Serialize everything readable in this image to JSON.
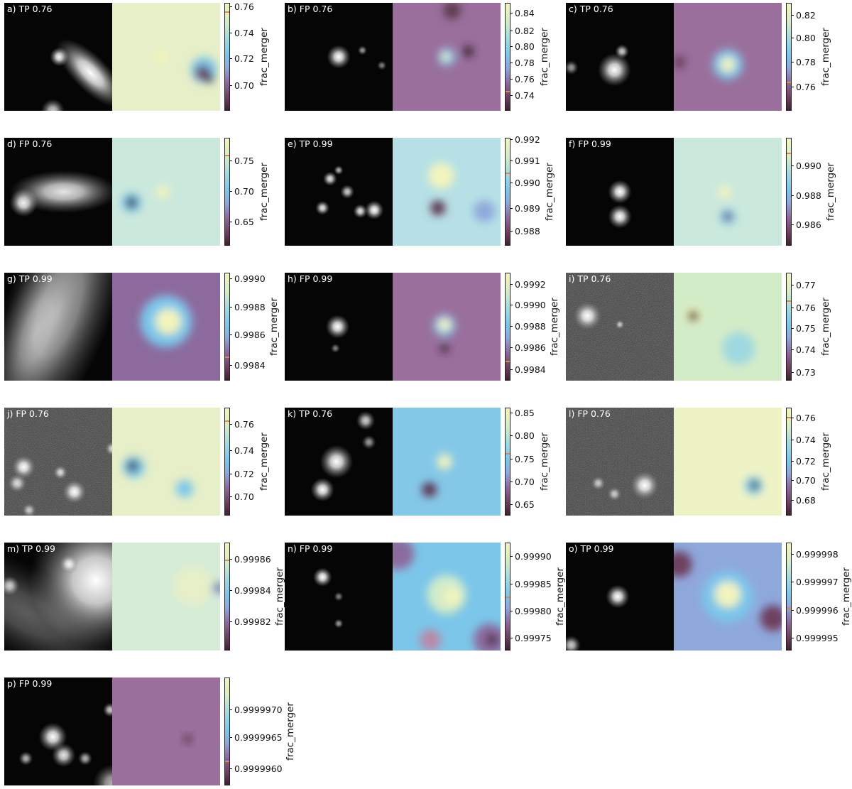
{
  "colorbar_label": "frac_merger",
  "colors": {
    "highlight_tick": "#d98c4a",
    "label_text": "#ffffff",
    "galaxy_bg": "#000000"
  },
  "panels": [
    {
      "id": "a",
      "label": "a) TP 0.76",
      "ticks": [
        "0.76",
        "0.74",
        "0.72",
        "0.70"
      ],
      "tick_pos": [
        0.04,
        0.28,
        0.52,
        0.77
      ],
      "mark": 0.07,
      "bg": "#e6efc8",
      "sources": [
        [
          0.51,
          0.5,
          0.04,
          1
        ],
        [
          0.8,
          0.65,
          0.1,
          1,
          45
        ],
        [
          0.45,
          1.0,
          0.05,
          0.8
        ]
      ],
      "blobs": [
        [
          0.85,
          0.62,
          0.12,
          "#7cc6ea"
        ],
        [
          0.84,
          0.65,
          0.07,
          "#6e3f5e"
        ],
        [
          0.9,
          0.7,
          0.04,
          "#3b2330"
        ],
        [
          0.45,
          0.5,
          0.06,
          "#f3f4bc"
        ]
      ]
    },
    {
      "id": "b",
      "label": "b) FP 0.76",
      "ticks": [
        "0.84",
        "0.82",
        "0.80",
        "0.78",
        "0.76",
        "0.74"
      ],
      "tick_pos": [
        0.1,
        0.26,
        0.41,
        0.56,
        0.71,
        0.86
      ],
      "mark": 0.82,
      "bg": "#9a6f9c",
      "sources": [
        [
          0.5,
          0.5,
          0.05,
          1
        ],
        [
          0.72,
          0.44,
          0.02,
          0.6
        ],
        [
          0.9,
          0.58,
          0.02,
          0.5
        ]
      ],
      "blobs": [
        [
          0.5,
          0.5,
          0.08,
          "#7cc6ea"
        ],
        [
          0.49,
          0.5,
          0.04,
          "#f3f4bc"
        ],
        [
          0.7,
          0.45,
          0.05,
          "#3b2330"
        ],
        [
          0.55,
          0.07,
          0.08,
          "#5c3b4e"
        ]
      ]
    },
    {
      "id": "c",
      "label": "c) TP 0.76",
      "ticks": [
        "0.82",
        "0.80",
        "0.78",
        "0.76"
      ],
      "tick_pos": [
        0.12,
        0.33,
        0.55,
        0.78
      ],
      "mark": 0.73,
      "bg": "#9a6f9c",
      "sources": [
        [
          0.45,
          0.62,
          0.07,
          1
        ],
        [
          0.52,
          0.45,
          0.03,
          0.8
        ],
        [
          0.05,
          0.6,
          0.03,
          0.6
        ]
      ],
      "blobs": [
        [
          0.5,
          0.57,
          0.14,
          "#7cc6ea"
        ],
        [
          0.5,
          0.57,
          0.07,
          "#f3f4bc"
        ],
        [
          0.05,
          0.55,
          0.06,
          "#6e3f5e"
        ]
      ]
    },
    {
      "id": "d",
      "label": "d) FP 0.76",
      "ticks": [
        "0.75",
        "0.70",
        "0.65"
      ],
      "tick_pos": [
        0.22,
        0.5,
        0.78
      ],
      "mark": 0.15,
      "bg": "#cbe8dc",
      "sources": [
        [
          0.18,
          0.6,
          0.06,
          1
        ],
        [
          0.55,
          0.5,
          0.12,
          0.9,
          0
        ]
      ],
      "blobs": [
        [
          0.18,
          0.6,
          0.09,
          "#7cc6ea"
        ],
        [
          0.18,
          0.6,
          0.05,
          "#3b2330"
        ],
        [
          0.47,
          0.5,
          0.06,
          "#f3f4bc"
        ]
      ]
    },
    {
      "id": "e",
      "label": "e) TP 0.99",
      "ticks": [
        "0.992",
        "0.991",
        "0.990",
        "0.989",
        "0.988"
      ],
      "tick_pos": [
        0.02,
        0.22,
        0.42,
        0.66,
        0.87
      ],
      "mark": 0.32,
      "bg": "#b6e0e6",
      "sources": [
        [
          0.42,
          0.38,
          0.03,
          0.9
        ],
        [
          0.58,
          0.5,
          0.03,
          0.8
        ],
        [
          0.35,
          0.65,
          0.03,
          0.9
        ],
        [
          0.7,
          0.68,
          0.03,
          0.9
        ],
        [
          0.83,
          0.67,
          0.04,
          1
        ],
        [
          0.5,
          0.3,
          0.02,
          0.7
        ]
      ],
      "blobs": [
        [
          0.42,
          0.65,
          0.07,
          "#6e3f5e"
        ],
        [
          0.42,
          0.65,
          0.04,
          "#3b2330"
        ],
        [
          0.45,
          0.35,
          0.12,
          "#f3f4bc"
        ],
        [
          0.85,
          0.68,
          0.1,
          "#8fa8dc"
        ]
      ]
    },
    {
      "id": "f",
      "label": "f) FP 0.99",
      "ticks": [
        "0.990",
        "0.988",
        "0.986"
      ],
      "tick_pos": [
        0.26,
        0.54,
        0.81
      ],
      "mark": 0.13,
      "bg": "#cbe8dc",
      "sources": [
        [
          0.5,
          0.5,
          0.05,
          1
        ],
        [
          0.5,
          0.73,
          0.05,
          1
        ]
      ],
      "blobs": [
        [
          0.5,
          0.73,
          0.07,
          "#7cc6ea"
        ],
        [
          0.5,
          0.73,
          0.04,
          "#6e3f5e"
        ],
        [
          0.47,
          0.5,
          0.06,
          "#f3f4bc"
        ]
      ]
    },
    {
      "id": "g",
      "label": "g) TP 0.99",
      "ticks": [
        "0.9990",
        "0.9988",
        "0.9986",
        "0.9984"
      ],
      "tick_pos": [
        0.06,
        0.32,
        0.58,
        0.86
      ],
      "mark": 0.78,
      "bg": "#8c6a9e",
      "sources": [
        [
          0.5,
          0.35,
          0.3,
          0.65,
          -70
        ],
        [
          0.3,
          0.55,
          0.2,
          0.45,
          -70
        ]
      ],
      "blobs": [
        [
          0.5,
          0.45,
          0.24,
          "#7cc6ea"
        ],
        [
          0.52,
          0.45,
          0.12,
          "#f3f4bc"
        ]
      ]
    },
    {
      "id": "h",
      "label": "h) FP 0.99",
      "ticks": [
        "0.9992",
        "0.9990",
        "0.9988",
        "0.9986",
        "0.9984"
      ],
      "tick_pos": [
        0.11,
        0.3,
        0.5,
        0.7,
        0.9
      ],
      "mark": 0.82,
      "bg": "#9a6f9c",
      "sources": [
        [
          0.49,
          0.5,
          0.05,
          1
        ],
        [
          0.47,
          0.7,
          0.02,
          0.5
        ]
      ],
      "blobs": [
        [
          0.48,
          0.49,
          0.1,
          "#7cc6ea"
        ],
        [
          0.48,
          0.48,
          0.06,
          "#f3f4bc"
        ],
        [
          0.48,
          0.7,
          0.04,
          "#3b2330"
        ]
      ]
    },
    {
      "id": "i",
      "label": "i) TP 0.76",
      "ticks": [
        "0.77",
        "0.76",
        "0.75",
        "0.74",
        "0.73"
      ],
      "tick_pos": [
        0.12,
        0.33,
        0.52,
        0.72,
        0.93
      ],
      "mark": 0.25,
      "bg": "#d2ecc8",
      "noise": true,
      "sources": [
        [
          0.2,
          0.4,
          0.06,
          1
        ],
        [
          0.5,
          0.48,
          0.02,
          0.7
        ]
      ],
      "blobs": [
        [
          0.18,
          0.39,
          0.08,
          "#f3f4bc"
        ],
        [
          0.18,
          0.4,
          0.05,
          "#3b2330"
        ],
        [
          0.6,
          0.7,
          0.15,
          "#9fd8e0"
        ]
      ]
    },
    {
      "id": "j",
      "label": "j) FP 0.76",
      "ticks": [
        "0.76",
        "0.74",
        "0.72",
        "0.70"
      ],
      "tick_pos": [
        0.16,
        0.4,
        0.62,
        0.83
      ],
      "mark": 0.11,
      "bg": "#e6efc8",
      "noise": true,
      "sources": [
        [
          0.18,
          0.55,
          0.05,
          1
        ],
        [
          0.12,
          0.7,
          0.04,
          0.8
        ],
        [
          0.65,
          0.78,
          0.05,
          1
        ],
        [
          0.52,
          0.6,
          0.03,
          0.8
        ],
        [
          1.0,
          0.38,
          0.03,
          0.8
        ],
        [
          0.23,
          0.95,
          0.03,
          0.7
        ]
      ],
      "blobs": [
        [
          0.2,
          0.55,
          0.1,
          "#7cc6ea"
        ],
        [
          0.19,
          0.54,
          0.05,
          "#3b2330"
        ],
        [
          0.67,
          0.75,
          0.08,
          "#7cc6ea"
        ]
      ]
    },
    {
      "id": "k",
      "label": "k) TP 0.76",
      "ticks": [
        "0.85",
        "0.80",
        "0.75",
        "0.70",
        "0.65"
      ],
      "tick_pos": [
        0.05,
        0.26,
        0.48,
        0.69,
        0.9
      ],
      "mark": 0.42,
      "bg": "#84c8e8",
      "sources": [
        [
          0.48,
          0.5,
          0.07,
          1
        ],
        [
          0.75,
          0.12,
          0.04,
          0.8
        ],
        [
          0.35,
          0.76,
          0.05,
          1
        ],
        [
          0.78,
          0.32,
          0.03,
          0.6
        ]
      ],
      "blobs": [
        [
          0.48,
          0.5,
          0.07,
          "#f3f4bc"
        ],
        [
          0.34,
          0.76,
          0.07,
          "#6e3f5e"
        ],
        [
          0.34,
          0.76,
          0.04,
          "#3b2330"
        ]
      ]
    },
    {
      "id": "l",
      "label": "l) FP 0.76",
      "ticks": [
        "0.76",
        "0.74",
        "0.72",
        "0.70",
        "0.68"
      ],
      "tick_pos": [
        0.1,
        0.3,
        0.5,
        0.68,
        0.86
      ],
      "mark": 0.08,
      "bg": "#eef3c6",
      "noise": true,
      "sources": [
        [
          0.73,
          0.72,
          0.06,
          1
        ],
        [
          0.3,
          0.7,
          0.03,
          0.7
        ],
        [
          0.45,
          0.8,
          0.03,
          0.7
        ]
      ],
      "blobs": [
        [
          0.74,
          0.72,
          0.08,
          "#7cc6ea"
        ],
        [
          0.75,
          0.72,
          0.04,
          "#3b2330"
        ]
      ]
    },
    {
      "id": "m",
      "label": "m) TP 0.99",
      "ticks": [
        "0.99986",
        "0.99984",
        "0.99982"
      ],
      "tick_pos": [
        0.16,
        0.45,
        0.74
      ],
      "mark": 0.15,
      "bg": "#d6ecd6",
      "sources": [
        [
          0.85,
          0.35,
          0.28,
          1
        ],
        [
          0.6,
          0.2,
          0.04,
          0.9
        ],
        [
          0.05,
          0.4,
          0.04,
          0.8
        ],
        [
          0.2,
          0.65,
          0.25,
          0.35,
          30
        ]
      ],
      "blobs": [
        [
          0.98,
          0.42,
          0.06,
          "#8fa8dc"
        ],
        [
          0.99,
          0.42,
          0.03,
          "#3b2330"
        ],
        [
          0.75,
          0.4,
          0.18,
          "#e6efc8"
        ]
      ]
    },
    {
      "id": "n",
      "label": "n) FP 0.99",
      "ticks": [
        "0.99990",
        "0.99985",
        "0.99980",
        "0.99975"
      ],
      "tick_pos": [
        0.13,
        0.39,
        0.64,
        0.89
      ],
      "mark": 0.5,
      "bg": "#7cc6ea",
      "sources": [
        [
          0.35,
          0.32,
          0.04,
          1
        ],
        [
          0.5,
          0.5,
          0.02,
          0.5
        ],
        [
          0.5,
          0.75,
          0.02,
          0.6
        ]
      ],
      "blobs": [
        [
          0.5,
          0.48,
          0.18,
          "#d2ecc8"
        ],
        [
          0.55,
          0.5,
          0.08,
          "#f3f4bc"
        ],
        [
          0.05,
          0.1,
          0.15,
          "#8c6a9e"
        ],
        [
          0.9,
          0.9,
          0.15,
          "#8c6a9e"
        ],
        [
          0.92,
          0.9,
          0.05,
          "#3b2330"
        ],
        [
          0.35,
          0.9,
          0.1,
          "#b88aa8"
        ]
      ]
    },
    {
      "id": "o",
      "label": "o) TP 0.99",
      "ticks": [
        "0.999998",
        "0.999997",
        "0.999996",
        "0.999995"
      ],
      "tick_pos": [
        0.11,
        0.37,
        0.63,
        0.89
      ],
      "mark": 0.6,
      "bg": "#8fa8dc",
      "sources": [
        [
          0.48,
          0.5,
          0.05,
          1
        ],
        [
          0.05,
          0.95,
          0.04,
          0.8
        ]
      ],
      "blobs": [
        [
          0.5,
          0.5,
          0.24,
          "#7cc6ea"
        ],
        [
          0.5,
          0.48,
          0.12,
          "#f3f4bc"
        ],
        [
          0.05,
          0.2,
          0.12,
          "#6e3f5e"
        ],
        [
          0.92,
          0.7,
          0.12,
          "#6e3f5e"
        ]
      ]
    },
    {
      "id": "p",
      "label": "p) FP 0.99",
      "ticks": [
        "0.9999970",
        "0.9999965",
        "0.9999960"
      ],
      "tick_pos": [
        0.3,
        0.56,
        0.85
      ],
      "mark": 0.77,
      "bg": "#9a6f9c",
      "sources": [
        [
          0.45,
          0.55,
          0.06,
          1
        ],
        [
          0.55,
          0.72,
          0.05,
          0.9
        ],
        [
          0.75,
          0.75,
          0.03,
          0.7
        ],
        [
          0.98,
          0.3,
          0.03,
          0.8
        ],
        [
          0.2,
          0.75,
          0.03,
          0.7
        ],
        [
          1.0,
          0.98,
          0.08,
          0.7
        ]
      ],
      "blobs": [
        [
          0.7,
          0.57,
          0.04,
          "#5c3b4e"
        ]
      ]
    }
  ]
}
